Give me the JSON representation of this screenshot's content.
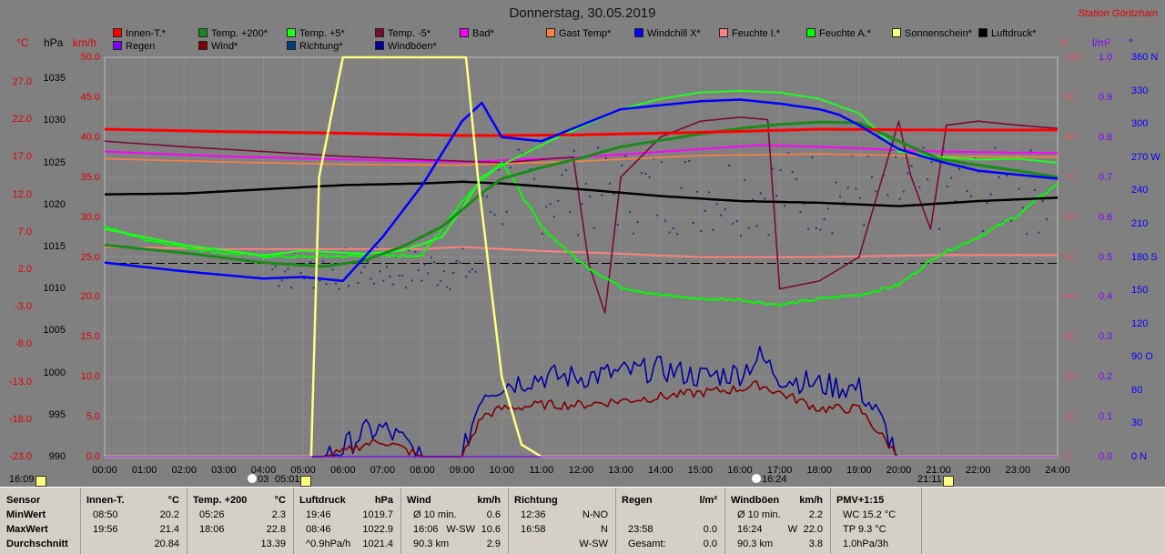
{
  "title": "Donnerstag, 30.05.2019",
  "station": "Station Göritzhain",
  "legend": [
    {
      "label": "Innen-T.*",
      "color": "#ff0000"
    },
    {
      "label": "Temp. +200*",
      "color": "#1a8a1a"
    },
    {
      "label": "Temp. +5*",
      "color": "#1eff1e"
    },
    {
      "label": "Temp. -5*",
      "color": "#7a0a3a"
    },
    {
      "label": "Bad*",
      "color": "#ff00ff"
    },
    {
      "label": "Gast Temp*",
      "color": "#ff8040"
    },
    {
      "label": "Windchill X*",
      "color": "#0000ff"
    },
    {
      "label": "Feuchte I.*",
      "color": "#ff8080"
    },
    {
      "label": "Feuchte A.*",
      "color": "#00ff00"
    },
    {
      "label": "Sonnenschein*",
      "color": "#ffff80"
    },
    {
      "label": "Luftdruck*",
      "color": "#000000"
    },
    {
      "label": "Regen",
      "color": "#8000ff"
    },
    {
      "label": "Wind*",
      "color": "#800000"
    },
    {
      "label": "Richtung*",
      "color": "#004080"
    },
    {
      "label": "Windböen*",
      "color": "#0000a0"
    }
  ],
  "units": {
    "temp": "°C",
    "press": "hPa",
    "wind": "km/h",
    "pct": "%",
    "rain": "l/m²",
    "dir": "°"
  },
  "axes": {
    "temp_ticks": [
      "27.0",
      "22.0",
      "17.0",
      "12.0",
      "7.0",
      "2.0",
      "-3.0",
      "-8.0",
      "-13.0",
      "-18.0",
      "-23.0"
    ],
    "press_ticks": [
      "1035",
      "1030",
      "1025",
      "1020",
      "1015",
      "1010",
      "1005",
      "1000",
      "995",
      "990"
    ],
    "wind_ticks": [
      "50.0",
      "45.0",
      "40.0",
      "35.0",
      "30.0",
      "25.0",
      "20.0",
      "15.0",
      "10.0",
      "5.0",
      "0.0"
    ],
    "pct_ticks": [
      "100",
      "90",
      "80",
      "70",
      "60",
      "50",
      "40",
      "30",
      "20",
      "10",
      "0"
    ],
    "rain_ticks": [
      "1.0",
      "0.9",
      "0.8",
      "0.7",
      "0.6",
      "0.5",
      "0.4",
      "0.3",
      "0.2",
      "0.1",
      "0.0"
    ],
    "dir_ticks": [
      "360 N",
      "330",
      "300",
      "270 W",
      "240",
      "210",
      "180 S",
      "150",
      "120",
      "90 O",
      "60",
      "30",
      "0 N"
    ],
    "x_ticks": [
      "00:00",
      "01:00",
      "02:00",
      "03:00",
      "04:00",
      "05:00",
      "06:00",
      "07:00",
      "08:00",
      "09:00",
      "10:00",
      "11:00",
      "12:00",
      "13:00",
      "14:00",
      "15:00",
      "16:00",
      "17:00",
      "18:00",
      "19:00",
      "20:00",
      "21:00",
      "22:00",
      "23:00",
      "24:00"
    ]
  },
  "bottom_times": {
    "left": "16:09",
    "sunrise": "03",
    "sunrise_b": "05:01",
    "noon": "16:24",
    "sunset": "21:11"
  },
  "chart_data": {
    "type": "line",
    "title": "Donnerstag, 30.05.2019",
    "x_unit": "h",
    "grid": true,
    "series": [
      {
        "name": "Innen-T.*",
        "axis": "wind",
        "x": [
          0,
          3,
          6,
          9,
          10,
          12,
          15,
          18,
          21,
          24
        ],
        "y": [
          41.0,
          40.7,
          40.5,
          40.2,
          40.2,
          40.3,
          40.6,
          41.0,
          40.9,
          40.9
        ]
      },
      {
        "name": "Temp. +200*",
        "axis": "wind",
        "x": [
          0,
          2,
          4,
          5.5,
          6.5,
          7.5,
          8.5,
          9.5,
          10,
          11,
          12,
          13,
          14,
          15,
          16,
          17,
          18,
          19,
          20,
          21,
          22,
          23,
          24
        ],
        "y": [
          26.5,
          25.5,
          24.3,
          23.8,
          24.5,
          26.3,
          28.8,
          33.0,
          34.8,
          36.2,
          37.4,
          38.8,
          39.6,
          40.4,
          41.1,
          41.6,
          41.9,
          41.8,
          39.5,
          37.3,
          36.5,
          35.8,
          35.0
        ]
      },
      {
        "name": "Temp. +5*",
        "axis": "wind",
        "x": [
          0,
          2,
          4,
          5,
          6.5,
          7.5,
          8.5,
          9,
          9.5,
          10,
          11,
          12,
          13,
          14,
          15,
          16,
          17,
          18,
          19,
          20,
          21,
          22,
          23,
          24
        ],
        "y": [
          28.5,
          26.5,
          25.2,
          25.8,
          25.4,
          25.8,
          27.5,
          31,
          35,
          36.5,
          39,
          41.3,
          43.5,
          44.8,
          45.6,
          45.8,
          45.6,
          44.8,
          43,
          38.2,
          37.5,
          37.2,
          37.3,
          36.8
        ]
      },
      {
        "name": "Temp. -5*",
        "axis": "wind",
        "x": [
          0,
          2,
          4,
          6,
          8,
          10,
          11,
          11.8,
          12.2,
          12.6,
          13,
          14,
          15,
          16,
          16.7,
          17,
          18,
          19,
          20,
          20.3,
          20.8,
          21.2,
          22,
          23,
          24
        ],
        "y": [
          39.5,
          38.8,
          38.2,
          37.6,
          37.2,
          36.8,
          37.2,
          37.5,
          24,
          18,
          35,
          40,
          42,
          42.5,
          42.2,
          21,
          22,
          25,
          42,
          35.2,
          28.5,
          41.5,
          42,
          41.5,
          41.1
        ]
      },
      {
        "name": "Bad*",
        "axis": "wind",
        "x": [
          0,
          3,
          6,
          9,
          12,
          15,
          16.5,
          18,
          21,
          24
        ],
        "y": [
          38.2,
          37.6,
          37.2,
          36.9,
          37.5,
          38.5,
          39.0,
          38.8,
          38.2,
          38.0
        ]
      },
      {
        "name": "Gast Temp*",
        "axis": "wind",
        "x": [
          0,
          3,
          6,
          9,
          12,
          15,
          18,
          21,
          24
        ],
        "y": [
          37.3,
          36.9,
          36.6,
          36.5,
          37.0,
          37.7,
          37.9,
          37.6,
          37.5
        ]
      },
      {
        "name": "Windchill X*",
        "axis": "wind",
        "x": [
          0,
          2,
          4,
          5,
          6,
          7,
          8,
          9,
          9.5,
          10,
          11,
          12,
          13,
          14,
          15,
          16,
          17,
          18,
          18.5,
          19,
          20,
          21,
          22,
          23,
          24
        ],
        "y": [
          24.3,
          23.2,
          22.3,
          22.5,
          22.0,
          27.5,
          34.0,
          42.0,
          44.3,
          40.0,
          39.5,
          41.5,
          43.5,
          44.0,
          44.5,
          44.7,
          44.2,
          43.5,
          42.8,
          41.5,
          38.5,
          37.0,
          35.8,
          35.3,
          34.8
        ]
      },
      {
        "name": "Feuchte I.*",
        "axis": "pct",
        "x": [
          0,
          3,
          6,
          8,
          9,
          10,
          11,
          12,
          15,
          18,
          21,
          24
        ],
        "y": [
          52.5,
          52.0,
          52.0,
          52.0,
          52.5,
          52.0,
          51.5,
          51.2,
          50.0,
          50.0,
          50.5,
          50.5
        ]
      },
      {
        "name": "Feuchte A.*",
        "axis": "pct",
        "x": [
          0,
          1,
          2,
          3,
          4,
          5,
          6,
          7,
          8,
          9,
          10,
          11,
          12,
          13,
          14,
          15,
          16,
          17,
          18,
          19,
          20,
          21,
          22,
          23,
          24
        ],
        "y": [
          57.5,
          54.5,
          52.5,
          51.0,
          50.2,
          50.0,
          50.2,
          50.2,
          50.5,
          64.0,
          74.0,
          57.5,
          48.5,
          42.5,
          40.5,
          39.5,
          39.3,
          38.0,
          39.5,
          40.5,
          43.0,
          50.5,
          55.0,
          60.5,
          68.5
        ]
      },
      {
        "name": "Sonnenschein*",
        "axis": "pct",
        "x": [
          0,
          5.2,
          5.4,
          6,
          9.1,
          9.4,
          10,
          10.5,
          11,
          24
        ],
        "y": [
          0,
          0,
          70,
          100,
          100,
          70,
          20,
          3,
          0,
          0
        ]
      },
      {
        "name": "Luftdruck*",
        "axis": "press",
        "x": [
          0,
          2,
          4,
          6,
          8,
          9,
          10,
          12,
          14,
          16,
          18,
          20,
          22,
          23,
          24
        ],
        "y": [
          1021.2,
          1021.3,
          1021.8,
          1022.3,
          1022.5,
          1022.7,
          1022.5,
          1021.8,
          1021.0,
          1020.4,
          1020.2,
          1019.8,
          1020.4,
          1020.6,
          1020.8
        ]
      },
      {
        "name": "Wind*",
        "axis": "wind",
        "x": [
          0,
          5.5,
          6,
          6.5,
          7,
          7.5,
          8,
          9,
          9.5,
          10,
          11,
          12,
          13,
          14,
          15,
          16,
          16.5,
          17,
          18,
          19,
          19.5,
          20,
          24
        ],
        "y": [
          0,
          0,
          0.5,
          1.5,
          2,
          1,
          0,
          0,
          5,
          6,
          6.5,
          6.5,
          7,
          7.5,
          8,
          8.5,
          9,
          8,
          6,
          6,
          3,
          0,
          0
        ]
      },
      {
        "name": "Windböen*",
        "axis": "wind",
        "x": [
          0,
          5.5,
          6,
          6.5,
          7,
          7.5,
          8,
          9,
          9.5,
          10,
          11,
          12,
          13,
          14,
          15,
          16,
          16.5,
          17,
          18,
          19,
          19.5,
          20,
          24
        ],
        "y": [
          0,
          0,
          1,
          3,
          3.5,
          2,
          0,
          0,
          8,
          9,
          10,
          10,
          10.5,
          11,
          10,
          10.5,
          12.5,
          10,
          9,
          8.5,
          5,
          0,
          0
        ]
      },
      {
        "name": "Regen",
        "axis": "rain",
        "x": [
          0,
          24
        ],
        "y": [
          0,
          0
        ]
      }
    ],
    "axes_ranges": {
      "wind": [
        0,
        50
      ],
      "temp": [
        -23,
        27
      ],
      "press": [
        990,
        1037.5
      ],
      "pct": [
        0,
        100
      ],
      "rain": [
        0,
        1
      ],
      "dir": [
        0,
        360
      ]
    }
  },
  "table": [
    {
      "h1": "Sensor",
      "h2": "",
      "rows": [
        [
          "MinWert",
          "",
          ""
        ],
        [
          "MaxWert",
          "",
          ""
        ],
        [
          "Durchschnitt",
          "",
          ""
        ]
      ]
    },
    {
      "h1": "Innen-T.",
      "h2": "°C",
      "rows": [
        [
          "08:50",
          "",
          "20.2"
        ],
        [
          "19:56",
          "",
          "21.4"
        ],
        [
          "",
          "",
          "20.84"
        ]
      ]
    },
    {
      "h1": "Temp. +200",
      "h2": "°C",
      "rows": [
        [
          "05:26",
          "",
          "2.3"
        ],
        [
          "18:06",
          "",
          "22.8"
        ],
        [
          "",
          "",
          "13.39"
        ]
      ]
    },
    {
      "h1": "Luftdruck",
      "h2": "hPa",
      "rows": [
        [
          "19:46",
          "",
          "1019.7"
        ],
        [
          "08:46",
          "",
          "1022.9"
        ],
        [
          "^0.9hPa/h",
          "",
          "1021.4"
        ]
      ]
    },
    {
      "h1": "Wind",
      "h2": "km/h",
      "rows": [
        [
          "Ø 10 min.",
          "",
          "0.6"
        ],
        [
          "16:06",
          "W-SW",
          "10.6"
        ],
        [
          "90.3 km",
          "",
          "2.9"
        ]
      ]
    },
    {
      "h1": "Richtung",
      "h2": "",
      "rows": [
        [
          "12:36",
          "",
          "N-NO"
        ],
        [
          "16:58",
          "",
          "N"
        ],
        [
          "",
          "",
          "W-SW"
        ]
      ]
    },
    {
      "h1": "Regen",
      "h2": "l/m²",
      "rows": [
        [
          "",
          "",
          ""
        ],
        [
          "23:58",
          "",
          "0.0"
        ],
        [
          "Gesamt:",
          "",
          "0.0"
        ]
      ]
    },
    {
      "h1": "Windböen",
      "h2": "km/h",
      "rows": [
        [
          "Ø 10 min.",
          "",
          "2.2"
        ],
        [
          "16:24",
          "W",
          "22.0"
        ],
        [
          "90.3 km",
          "",
          "3.8"
        ]
      ]
    },
    {
      "h1": "PMV+1:15",
      "h2": "",
      "rows": [
        [
          "WC 15.2 °C",
          "",
          ""
        ],
        [
          "TP 9.3 °C",
          "",
          ""
        ],
        [
          "1.0hPa/3h",
          "",
          ""
        ]
      ]
    }
  ]
}
